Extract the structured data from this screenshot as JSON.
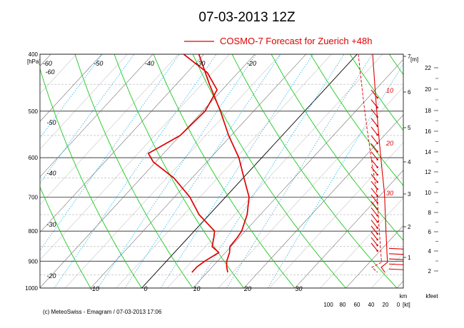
{
  "chart_data": {
    "type": "line",
    "title": "07-03-2013  12Z",
    "legend": {
      "label": "COSMO-7 Forecast for Zuerich   +48h",
      "placement": "top-right",
      "color": "#e00000"
    },
    "y_axis": {
      "unit": "[hPa]",
      "ticks": [
        400,
        500,
        600,
        700,
        800,
        900,
        1000
      ],
      "range": [
        400,
        1000
      ],
      "scale": "log"
    },
    "x_axis": {
      "ticks": [
        -10,
        0,
        10,
        20,
        30
      ],
      "range": [
        -15,
        35
      ]
    },
    "isotherm_labels": [
      -60,
      -50,
      -40,
      -30,
      -20
    ],
    "isotherm_left_labels": [
      -60,
      -50,
      -40,
      -30,
      -20
    ],
    "height_axis": {
      "unit": "[m]",
      "ticks": [
        1,
        2,
        3,
        4,
        5,
        6,
        7
      ],
      "unit_bottom": "km"
    },
    "kfeet_axis": {
      "ticks": [
        2,
        4,
        6,
        8,
        10,
        12,
        14,
        16,
        18,
        20,
        22
      ],
      "unit": "kfeet"
    },
    "wind_axis": {
      "ticks": [
        100,
        80,
        60,
        40,
        20,
        0
      ],
      "unit": "[kt]"
    },
    "wind_profile_labels": [
      10,
      20,
      30
    ],
    "series": [
      {
        "name": "temperature",
        "color": "#e00000",
        "points": [
          {
            "p": 940,
            "t": 14
          },
          {
            "p": 920,
            "t": 12.8
          },
          {
            "p": 900,
            "t": 11.8
          },
          {
            "p": 870,
            "t": 10.8
          },
          {
            "p": 850,
            "t": 9.8
          },
          {
            "p": 820,
            "t": 9.6
          },
          {
            "p": 800,
            "t": 9.3
          },
          {
            "p": 750,
            "t": 7.4
          },
          {
            "p": 700,
            "t": 4.6
          },
          {
            "p": 650,
            "t": 0.2
          },
          {
            "p": 600,
            "t": -4.5
          },
          {
            "p": 550,
            "t": -10.5
          },
          {
            "p": 500,
            "t": -16.5
          },
          {
            "p": 450,
            "t": -23.5
          },
          {
            "p": 400,
            "t": -31
          }
        ]
      },
      {
        "name": "dewpoint",
        "color": "#e00000",
        "points": [
          {
            "p": 940,
            "t": 7
          },
          {
            "p": 920,
            "t": 7
          },
          {
            "p": 900,
            "t": 7.5
          },
          {
            "p": 870,
            "t": 8.7
          },
          {
            "p": 850,
            "t": 6.3
          },
          {
            "p": 820,
            "t": 5
          },
          {
            "p": 800,
            "t": 4
          },
          {
            "p": 750,
            "t": -2
          },
          {
            "p": 700,
            "t": -7
          },
          {
            "p": 650,
            "t": -13.5
          },
          {
            "p": 610,
            "t": -20.5
          },
          {
            "p": 590,
            "t": -23
          },
          {
            "p": 550,
            "t": -20
          },
          {
            "p": 500,
            "t": -19.5
          },
          {
            "p": 460,
            "t": -21
          },
          {
            "p": 430,
            "t": -26
          },
          {
            "p": 400,
            "t": -34
          }
        ]
      }
    ]
  },
  "footer": {
    "credit": "(c) MeteoSwiss - Emagram  /  07-03-2013  17:06"
  }
}
